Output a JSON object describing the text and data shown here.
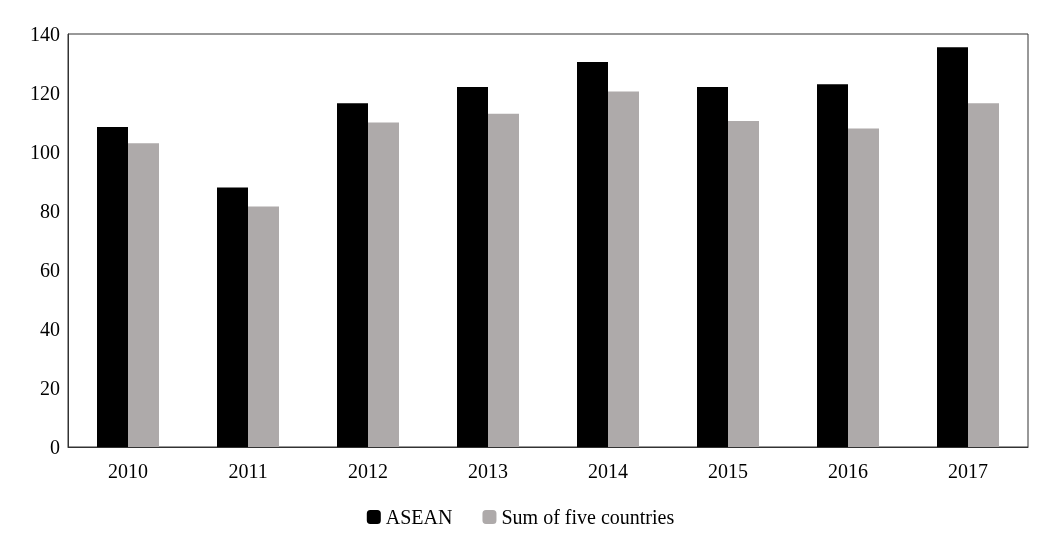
{
  "chart_data": {
    "type": "bar",
    "categories": [
      "2010",
      "2011",
      "2012",
      "2013",
      "2014",
      "2015",
      "2016",
      "2017"
    ],
    "series": [
      {
        "name": "ASEAN",
        "color": "#000000",
        "values": [
          108.5,
          88,
          116.5,
          122,
          130.5,
          122,
          123,
          135.5
        ]
      },
      {
        "name": "Sum of five countries",
        "color": "#aeaaaa",
        "values": [
          103,
          81.5,
          110,
          113,
          120.5,
          110.5,
          108,
          116.5
        ]
      }
    ],
    "ylim": [
      0,
      140
    ],
    "yticks": [
      0,
      20,
      40,
      60,
      80,
      100,
      120,
      140
    ],
    "grid": false,
    "legend": "bottom"
  }
}
